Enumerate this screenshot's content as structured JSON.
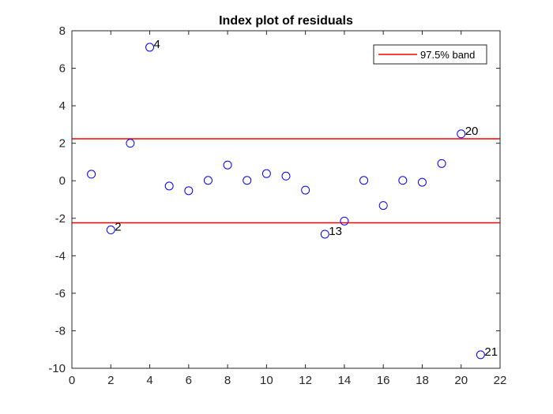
{
  "chart_data": {
    "type": "scatter",
    "title": "Index plot of residuals",
    "xlabel": "",
    "ylabel": "",
    "xlim": [
      0,
      22
    ],
    "ylim": [
      -10,
      8
    ],
    "x_ticks": [
      0,
      2,
      4,
      6,
      8,
      10,
      12,
      14,
      16,
      18,
      20,
      22
    ],
    "y_ticks": [
      -10,
      -8,
      -6,
      -4,
      -2,
      0,
      2,
      4,
      6,
      8
    ],
    "grid": false,
    "series": [
      {
        "marker": "open-circle",
        "color": "#0000ff",
        "x": [
          1,
          2,
          3,
          4,
          5,
          6,
          7,
          8,
          9,
          10,
          11,
          12,
          13,
          14,
          15,
          16,
          17,
          18,
          19,
          20,
          21
        ],
        "y": [
          0.35,
          -2.62,
          2.0,
          7.12,
          -0.28,
          -0.53,
          0.02,
          0.84,
          0.02,
          0.38,
          0.25,
          -0.5,
          -2.85,
          -2.15,
          0.02,
          -1.32,
          0.02,
          -0.08,
          0.92,
          2.5,
          -9.28
        ]
      }
    ],
    "bands": [
      {
        "name": "97.5% band",
        "color": "#ff0000",
        "y": 2.24
      },
      {
        "color": "#ff0000",
        "y": -2.24
      }
    ],
    "annotations": [
      {
        "text": "4",
        "x": 4,
        "y": 7.12
      },
      {
        "text": "2",
        "x": 2,
        "y": -2.62
      },
      {
        "text": "13",
        "x": 13,
        "y": -2.85
      },
      {
        "text": "20",
        "x": 20,
        "y": 2.5
      },
      {
        "text": "21",
        "x": 21,
        "y": -9.28
      }
    ],
    "legend": {
      "entries": [
        "97.5% band"
      ],
      "placement": "top-right"
    }
  }
}
